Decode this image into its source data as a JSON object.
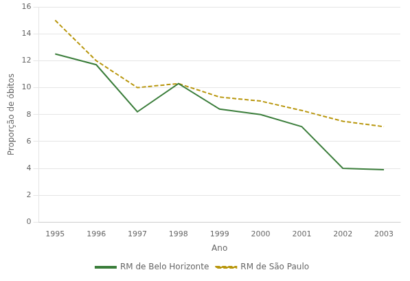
{
  "chart_data": {
    "type": "line",
    "x": [
      1995,
      1996,
      1997,
      1998,
      1999,
      2000,
      2001,
      2002,
      2003
    ],
    "series": [
      {
        "name": "RM de Belo Horizonte",
        "color": "#3a7d3a",
        "line_style": "solid",
        "values": [
          12.5,
          11.7,
          8.2,
          10.3,
          8.4,
          8.0,
          7.1,
          4.0,
          3.9
        ]
      },
      {
        "name": "RM de São Paulo",
        "color": "#b8960c",
        "line_style": "dashed",
        "values": [
          15.0,
          12.0,
          10.0,
          10.3,
          9.3,
          9.0,
          8.3,
          7.5,
          7.1
        ]
      }
    ],
    "xlabel": "Ano",
    "ylabel": "Proporção de óbitos",
    "xlim": [
      1994.6,
      2003.4
    ],
    "xticks": [
      1995,
      1996,
      1997,
      1998,
      1999,
      2000,
      2001,
      2002,
      2003
    ],
    "ylim": [
      0,
      16
    ],
    "yticks": [
      0,
      2,
      4,
      6,
      8,
      10,
      12,
      14,
      16
    ],
    "grid": "y",
    "legend": "bottom"
  }
}
